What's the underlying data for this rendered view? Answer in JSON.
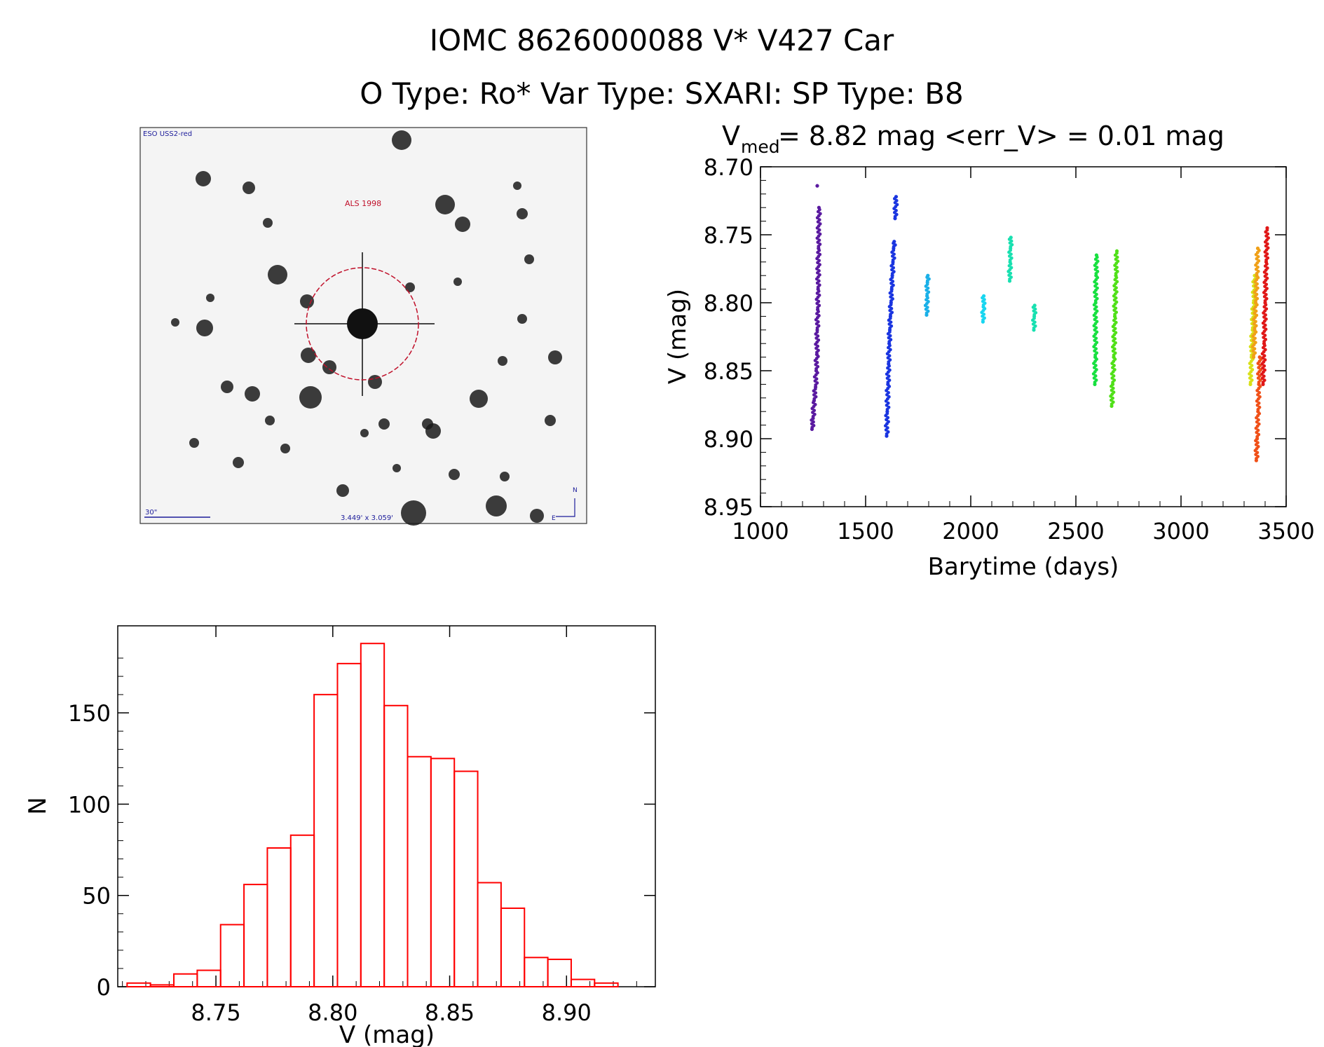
{
  "header": {
    "title": "IOMC 8626000088   V* V427 Car",
    "subtitle": "O Type: Ro*  Var Type: SXARI:  SP Type: B8"
  },
  "finder": {
    "survey_label": "ESO USS2-red",
    "target_label": "ALS 1998",
    "scale_label": "30\"",
    "fov_label": "3.449' x 3.059'",
    "north_label": "N",
    "east_label": "E",
    "colors": {
      "label": "#1c1c9a",
      "target": "#c0102a"
    }
  },
  "chart_data": [
    {
      "type": "scatter",
      "title_main": "V",
      "title_sub": "med",
      "title_rest": " = 8.82 mag <err_V> = 0.01 mag",
      "xlabel": "Barytime (days)",
      "ylabel": "V (mag)",
      "xlim": [
        1000,
        3500
      ],
      "ylim": [
        8.95,
        8.7
      ],
      "x_ticks": [
        1000,
        1500,
        2000,
        2500,
        3000,
        3500
      ],
      "y_ticks": [
        "8.70",
        "8.75",
        "8.80",
        "8.85",
        "8.90",
        "8.95"
      ],
      "series": [
        {
          "name": "seg1",
          "color": "#5a1aa0",
          "x": [
            1245,
            1250,
            1255,
            1262,
            1265,
            1268,
            1270,
            1272,
            1274,
            1276,
            1278
          ],
          "y": [
            8.893,
            8.885,
            8.872,
            8.862,
            8.85,
            8.838,
            8.82,
            8.805,
            8.79,
            8.76,
            8.73
          ]
        },
        {
          "name": "seg1b",
          "color": "#5a1aa0",
          "x": [
            1270
          ],
          "y": [
            8.714
          ]
        },
        {
          "name": "seg2",
          "color": "#1a35e0",
          "x": [
            1600,
            1603,
            1606,
            1609,
            1612,
            1615,
            1618,
            1621,
            1624,
            1627,
            1630,
            1633,
            1636
          ],
          "y": [
            8.898,
            8.88,
            8.86,
            8.845,
            8.83,
            8.82,
            8.81,
            8.8,
            8.79,
            8.78,
            8.77,
            8.76,
            8.755
          ]
        },
        {
          "name": "seg2b",
          "color": "#1a35e0",
          "x": [
            1640,
            1645
          ],
          "y": [
            8.738,
            8.722
          ]
        },
        {
          "name": "seg3",
          "color": "#1ab0e8",
          "x": [
            1790,
            1792,
            1794,
            1796
          ],
          "y": [
            8.809,
            8.795,
            8.785,
            8.78
          ]
        },
        {
          "name": "seg4",
          "color": "#18d6f0",
          "x": [
            2058,
            2060,
            2062
          ],
          "y": [
            8.814,
            8.803,
            8.795
          ]
        },
        {
          "name": "seg5",
          "color": "#18e0b0",
          "x": [
            2185,
            2187,
            2189,
            2191,
            2300,
            2302,
            2304
          ],
          "y": [
            8.784,
            8.77,
            8.76,
            8.752,
            8.82,
            8.81,
            8.802
          ]
        },
        {
          "name": "seg6",
          "color": "#18e040",
          "x": [
            2590,
            2592,
            2594,
            2596,
            2598
          ],
          "y": [
            8.86,
            8.84,
            8.8,
            8.78,
            8.765
          ]
        },
        {
          "name": "seg7",
          "color": "#50e018",
          "x": [
            2670,
            2675,
            2680,
            2685,
            2690,
            2695
          ],
          "y": [
            8.876,
            8.86,
            8.84,
            8.81,
            8.78,
            8.762
          ]
        },
        {
          "name": "seg8",
          "color": "#d8e018",
          "x": [
            3330,
            3335,
            3340,
            3345,
            3350
          ],
          "y": [
            8.86,
            8.84,
            8.82,
            8.8,
            8.78
          ]
        },
        {
          "name": "seg9",
          "color": "#f0a018",
          "x": [
            3345,
            3350,
            3355,
            3360,
            3365
          ],
          "y": [
            8.84,
            8.82,
            8.8,
            8.78,
            8.76
          ]
        },
        {
          "name": "seg10",
          "color": "#f05018",
          "x": [
            3358,
            3362,
            3366,
            3370,
            3374
          ],
          "y": [
            8.916,
            8.9,
            8.88,
            8.86,
            8.84
          ]
        },
        {
          "name": "seg11",
          "color": "#e01818",
          "x": [
            3390,
            3395,
            3400,
            3405,
            3410
          ],
          "y": [
            8.86,
            8.83,
            8.8,
            8.77,
            8.745
          ]
        }
      ]
    },
    {
      "type": "bar",
      "subtype": "histogram",
      "xlabel": "V (mag)",
      "ylabel": "N",
      "xlim": [
        8.708,
        8.938
      ],
      "ylim": [
        0,
        190
      ],
      "x_ticks": [
        "8.75",
        "8.80",
        "8.85",
        "8.90"
      ],
      "y_ticks": [
        "0",
        "50",
        "100",
        "150"
      ],
      "bin_width": 0.01,
      "bins": [
        8.712,
        8.722,
        8.732,
        8.742,
        8.752,
        8.762,
        8.772,
        8.782,
        8.792,
        8.802,
        8.812,
        8.822,
        8.832,
        8.842,
        8.852,
        8.862,
        8.872,
        8.882,
        8.892,
        8.902,
        8.912
      ],
      "values": [
        2,
        1,
        7,
        9,
        34,
        56,
        76,
        83,
        160,
        177,
        188,
        154,
        126,
        125,
        118,
        57,
        43,
        16,
        15,
        4,
        2
      ],
      "color": "#ff0000"
    }
  ]
}
